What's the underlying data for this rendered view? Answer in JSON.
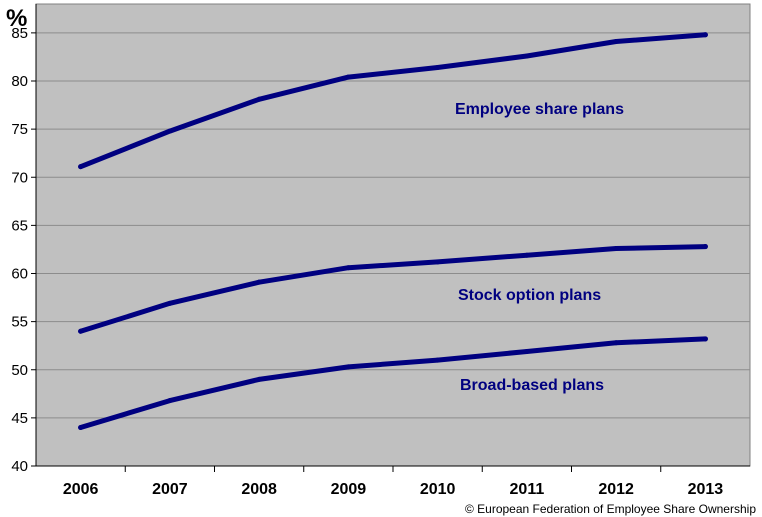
{
  "chart_data": {
    "type": "line",
    "unit_label": "%",
    "x": [
      "2006",
      "2007",
      "2008",
      "2009",
      "2010",
      "2011",
      "2012",
      "2013"
    ],
    "ylim": [
      40,
      88
    ],
    "yticks": [
      40,
      45,
      50,
      55,
      60,
      65,
      70,
      75,
      80,
      85
    ],
    "grid": true,
    "plot_background": "#c0c0c0",
    "line_color": "#000080",
    "series": [
      {
        "name": "Employee share plans",
        "values": [
          71.1,
          74.8,
          78.1,
          80.4,
          81.4,
          82.6,
          84.1,
          84.8
        ]
      },
      {
        "name": "Stock option plans",
        "values": [
          54.0,
          56.9,
          59.1,
          60.6,
          61.2,
          61.9,
          62.6,
          62.8
        ]
      },
      {
        "name": "Broad-based plans",
        "values": [
          44.0,
          46.8,
          49.0,
          50.3,
          51.0,
          51.9,
          52.8,
          53.2
        ]
      }
    ],
    "credit": "© European Federation of Employee Share Ownership"
  }
}
